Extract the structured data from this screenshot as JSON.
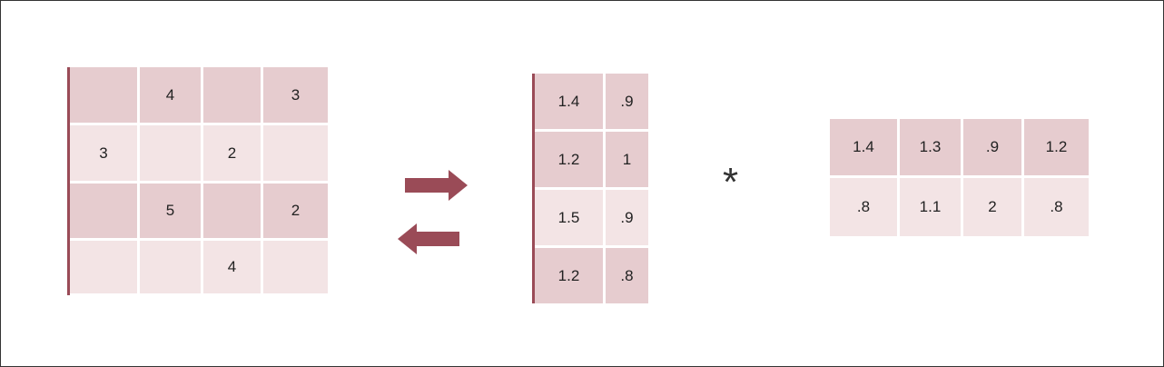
{
  "ratings_matrix": {
    "rows": [
      [
        "",
        "4",
        "",
        "3"
      ],
      [
        "3",
        "",
        "2",
        ""
      ],
      [
        "",
        "5",
        "",
        "2"
      ],
      [
        "",
        "",
        "4",
        ""
      ]
    ]
  },
  "user_factors": {
    "rows": [
      [
        "1.4",
        ".9"
      ],
      [
        "1.2",
        "1"
      ],
      [
        "1.5",
        ".9"
      ],
      [
        "1.2",
        ".8"
      ]
    ]
  },
  "operator": "*",
  "item_factors": {
    "rows": [
      [
        "1.4",
        "1.3",
        ".9",
        "1.2"
      ],
      [
        ".8",
        "1.1",
        "2",
        ".8"
      ]
    ]
  },
  "colors": {
    "arrow": "#9a4b57",
    "cell_dark": "#e6cccf",
    "cell_light": "#f3e4e5"
  }
}
